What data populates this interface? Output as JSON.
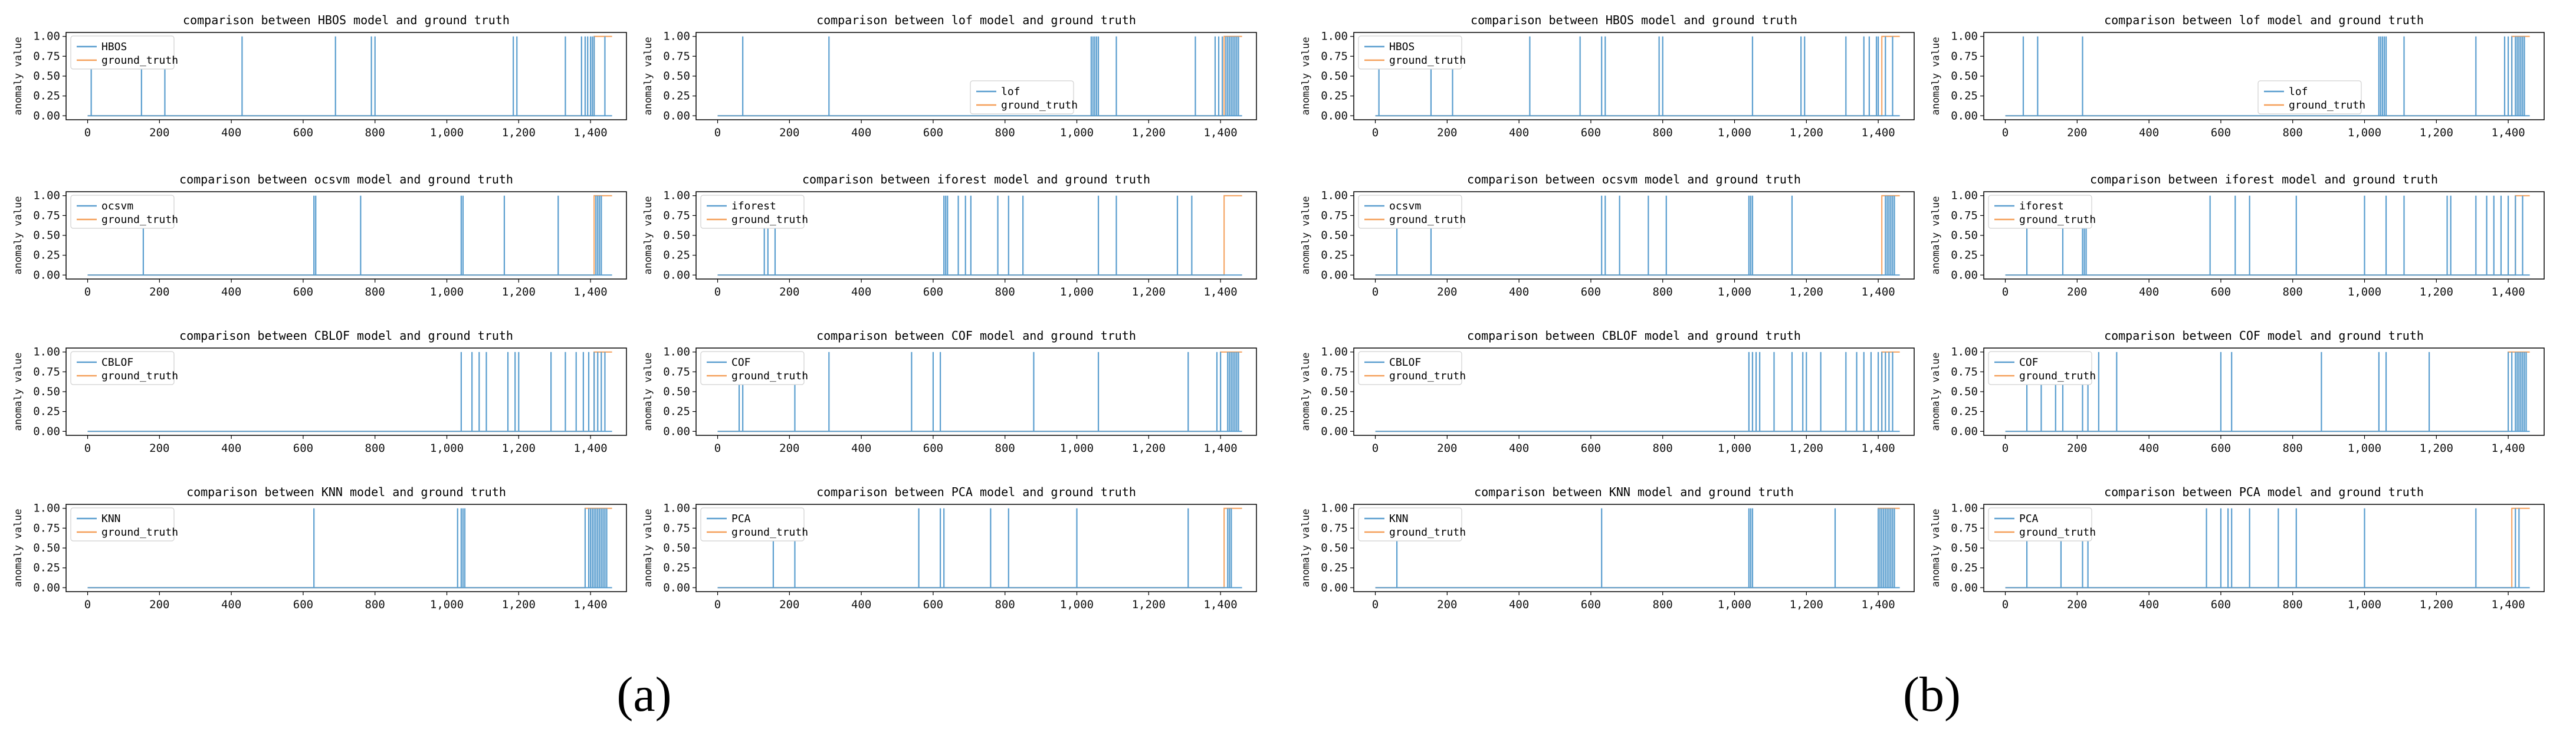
{
  "figure": {
    "panel_labels": [
      "(a)",
      "(b)"
    ],
    "colors": {
      "model": "#5a9ecf",
      "ground_truth": "#f5a05a",
      "axis": "#000000"
    }
  },
  "chart_data": [
    {
      "panel": "(a)",
      "type": "line",
      "subplots": [
        {
          "title": "comparison between HBOS model and ground truth",
          "legend": [
            "HBOS",
            "ground_truth"
          ],
          "legend_loc": "upper-left",
          "model_spikes": [
            10,
            150,
            215,
            430,
            690,
            790,
            800,
            1185,
            1195,
            1330,
            1375,
            1385,
            1392,
            1400,
            1405,
            1410,
            1440
          ],
          "truth_start": 1410
        },
        {
          "title": "comparison between lof model and ground truth",
          "legend": [
            "lof",
            "ground_truth"
          ],
          "legend_loc": "lower-center",
          "model_spikes": [
            70,
            310,
            1040,
            1045,
            1050,
            1055,
            1060,
            1110,
            1330,
            1385,
            1395,
            1405,
            1415,
            1420,
            1425,
            1430,
            1435,
            1440,
            1445,
            1450
          ],
          "truth_start": 1410
        },
        {
          "title": "comparison between ocsvm model and ground truth",
          "legend": [
            "ocsvm",
            "ground_truth"
          ],
          "legend_loc": "upper-left",
          "model_spikes": [
            155,
            630,
            635,
            760,
            1040,
            1045,
            1160,
            1310,
            1415,
            1420,
            1425,
            1430
          ],
          "truth_start": 1410
        },
        {
          "title": "comparison between iforest model and ground truth",
          "legend": [
            "iforest",
            "ground_truth"
          ],
          "legend_loc": "upper-left",
          "model_spikes": [
            130,
            140,
            160,
            630,
            635,
            640,
            670,
            690,
            705,
            780,
            810,
            850,
            1060,
            1110,
            1280,
            1320
          ],
          "truth_start": 1410
        },
        {
          "title": "comparison between CBLOF model and ground truth",
          "legend": [
            "CBLOF",
            "ground_truth"
          ],
          "legend_loc": "upper-left",
          "model_spikes": [
            1040,
            1070,
            1090,
            1110,
            1170,
            1190,
            1200,
            1290,
            1330,
            1360,
            1380,
            1395,
            1410,
            1420,
            1430,
            1440
          ],
          "truth_start": 1410
        },
        {
          "title": "comparison between COF model and ground truth",
          "legend": [
            "COF",
            "ground_truth"
          ],
          "legend_loc": "upper-left",
          "model_spikes": [
            60,
            70,
            215,
            310,
            540,
            600,
            620,
            880,
            1060,
            1310,
            1390,
            1400,
            1420,
            1425,
            1430,
            1435,
            1440,
            1445,
            1450
          ],
          "truth_start": 1400
        },
        {
          "title": "comparison between KNN model and ground truth",
          "legend": [
            "KNN",
            "ground_truth"
          ],
          "legend_loc": "upper-left",
          "model_spikes": [
            630,
            1030,
            1040,
            1045,
            1050,
            1385,
            1395,
            1400,
            1405,
            1410,
            1415,
            1420,
            1425,
            1430,
            1435,
            1440,
            1445
          ],
          "truth_start": 1385
        },
        {
          "title": "comparison between PCA model and ground truth",
          "legend": [
            "PCA",
            "ground_truth"
          ],
          "legend_loc": "upper-left",
          "model_spikes": [
            155,
            215,
            560,
            620,
            630,
            760,
            810,
            1000,
            1310,
            1420,
            1425,
            1430
          ],
          "truth_start": 1410
        }
      ],
      "xlim": [
        -60,
        1500
      ],
      "xticks": [
        "0",
        "200",
        "400",
        "600",
        "800",
        "1,000",
        "1,200",
        "1,400"
      ],
      "yticks": [
        "0.00",
        "0.25",
        "0.50",
        "0.75",
        "1.00"
      ],
      "ylim": [
        -0.05,
        1.05
      ],
      "ylabel": "anomaly value"
    },
    {
      "panel": "(b)",
      "type": "line",
      "subplots": [
        {
          "title": "comparison between HBOS model and ground truth",
          "legend": [
            "HBOS",
            "ground_truth"
          ],
          "legend_loc": "upper-left",
          "model_spikes": [
            10,
            155,
            215,
            430,
            570,
            630,
            640,
            790,
            800,
            1050,
            1185,
            1195,
            1310,
            1360,
            1375,
            1395,
            1400,
            1420,
            1440
          ],
          "truth_start": 1410
        },
        {
          "title": "comparison between lof model and ground truth",
          "legend": [
            "lof",
            "ground_truth"
          ],
          "legend_loc": "lower-center",
          "model_spikes": [
            50,
            90,
            215,
            1040,
            1045,
            1050,
            1055,
            1060,
            1110,
            1310,
            1390,
            1400,
            1410,
            1420,
            1425,
            1430,
            1435,
            1440,
            1445
          ],
          "truth_start": 1410
        },
        {
          "title": "comparison between ocsvm model and ground truth",
          "legend": [
            "ocsvm",
            "ground_truth"
          ],
          "legend_loc": "upper-left",
          "model_spikes": [
            60,
            155,
            630,
            640,
            680,
            760,
            810,
            1040,
            1045,
            1050,
            1160,
            1420,
            1425,
            1430,
            1435,
            1440,
            1445
          ],
          "truth_start": 1410
        },
        {
          "title": "comparison between iforest model and ground truth",
          "legend": [
            "iforest",
            "ground_truth"
          ],
          "legend_loc": "upper-left",
          "model_spikes": [
            60,
            160,
            215,
            220,
            225,
            570,
            640,
            680,
            810,
            1000,
            1060,
            1110,
            1230,
            1240,
            1310,
            1340,
            1360,
            1380,
            1400,
            1420,
            1440
          ],
          "truth_start": 1420
        },
        {
          "title": "comparison between CBLOF model and ground truth",
          "legend": [
            "CBLOF",
            "ground_truth"
          ],
          "legend_loc": "upper-left",
          "model_spikes": [
            1040,
            1050,
            1060,
            1070,
            1110,
            1160,
            1190,
            1200,
            1240,
            1310,
            1340,
            1360,
            1380,
            1400,
            1410,
            1420,
            1430,
            1440
          ],
          "truth_start": 1410
        },
        {
          "title": "comparison between COF model and ground truth",
          "legend": [
            "COF",
            "ground_truth"
          ],
          "legend_loc": "upper-left",
          "model_spikes": [
            60,
            100,
            140,
            160,
            215,
            230,
            260,
            310,
            600,
            630,
            880,
            1040,
            1060,
            1180,
            1400,
            1410,
            1420,
            1425,
            1430,
            1435,
            1440,
            1445,
            1450
          ],
          "truth_start": 1400
        },
        {
          "title": "comparison between KNN model and ground truth",
          "legend": [
            "KNN",
            "ground_truth"
          ],
          "legend_loc": "upper-left",
          "model_spikes": [
            60,
            630,
            1040,
            1045,
            1050,
            1280,
            1400,
            1405,
            1410,
            1415,
            1420,
            1425,
            1430,
            1435,
            1440,
            1445
          ],
          "truth_start": 1400
        },
        {
          "title": "comparison between PCA model and ground truth",
          "legend": [
            "PCA",
            "ground_truth"
          ],
          "legend_loc": "upper-left",
          "model_spikes": [
            60,
            155,
            215,
            230,
            560,
            600,
            620,
            630,
            680,
            760,
            810,
            1000,
            1310,
            1420,
            1430
          ],
          "truth_start": 1410
        }
      ],
      "xlim": [
        -60,
        1500
      ],
      "xticks": [
        "0",
        "200",
        "400",
        "600",
        "800",
        "1,000",
        "1,200",
        "1,400"
      ],
      "yticks": [
        "0.00",
        "0.25",
        "0.50",
        "0.75",
        "1.00"
      ],
      "ylim": [
        -0.05,
        1.05
      ],
      "ylabel": "anomaly value"
    }
  ]
}
